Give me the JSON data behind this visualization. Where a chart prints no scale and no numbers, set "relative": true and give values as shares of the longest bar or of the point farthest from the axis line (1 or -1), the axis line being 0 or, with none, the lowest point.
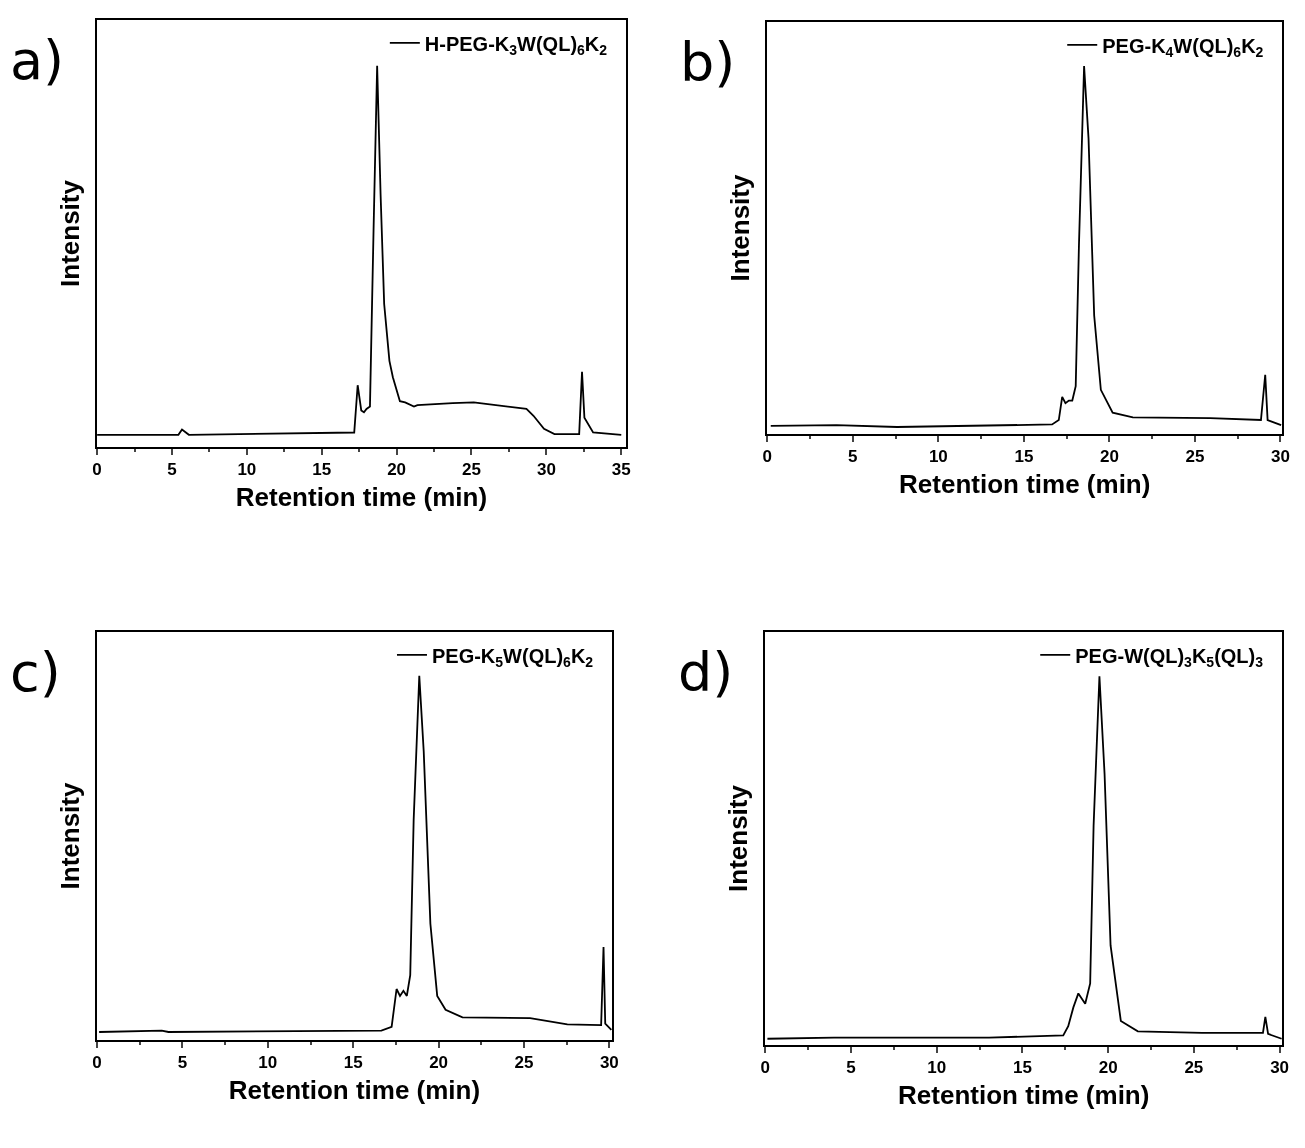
{
  "chart_data": [
    {
      "type": "line",
      "title": "a)",
      "xlabel": "Retention time (min)",
      "ylabel": "Intensity",
      "relative": true,
      "xlim": [
        0,
        35.3
      ],
      "xticks": [
        0,
        5,
        10,
        15,
        20,
        25,
        30,
        35
      ],
      "tick_labels": "x",
      "legend": "top right",
      "marker": "none",
      "line_style": "solid",
      "x": [
        0,
        5.43,
        5.67,
        6.13,
        17.17,
        17.4,
        17.64,
        17.82,
        17.99,
        18.22,
        18.46,
        18.7,
        18.93,
        19.17,
        19.52,
        19.75,
        20.22,
        20.57,
        21.16,
        21.39,
        23.74,
        25.15,
        28.67,
        29.14,
        29.84,
        30.54,
        32.19,
        32.38,
        32.54,
        33.12,
        35
      ],
      "series": [
        {
          "name": "H-PEG-K$_{3}$W(QL)$_{6}$K$_{2}$",
          "color": "#000000",
          "values": [
            0.032,
            0.032,
            0.046,
            0.032,
            0.038,
            0.162,
            0.096,
            0.091,
            0.1,
            0.106,
            0.567,
            1.0,
            0.663,
            0.375,
            0.226,
            0.183,
            0.12,
            0.117,
            0.106,
            0.11,
            0.115,
            0.117,
            0.1,
            0.082,
            0.048,
            0.034,
            0.034,
            0.197,
            0.077,
            0.038,
            0.032
          ]
        }
      ]
    },
    {
      "type": "line",
      "title": "b)",
      "xlabel": "Retention time (min)",
      "ylabel": "Intensity",
      "relative": true,
      "xlim": [
        0,
        30.1
      ],
      "xticks": [
        0,
        5,
        10,
        15,
        20,
        25,
        30
      ],
      "tick_labels": "x",
      "legend": "top right",
      "marker": "none",
      "line_style": "solid",
      "x": [
        0.2,
        4.04,
        7.58,
        16.65,
        17.04,
        17.24,
        17.43,
        17.63,
        17.83,
        18.03,
        18.22,
        18.52,
        18.78,
        19.11,
        19.5,
        20.19,
        21.37,
        25.9,
        28.86,
        29.11,
        29.25,
        30.04
      ],
      "series": [
        {
          "name": "PEG-K$_{4}$W(QL)$_{6}$K$_{2}$",
          "color": "#000000",
          "values": [
            0.022,
            0.024,
            0.019,
            0.026,
            0.038,
            0.101,
            0.084,
            0.091,
            0.091,
            0.13,
            0.514,
            1.0,
            0.803,
            0.322,
            0.12,
            0.058,
            0.045,
            0.043,
            0.038,
            0.161,
            0.038,
            0.024
          ]
        }
      ]
    },
    {
      "type": "line",
      "title": "c)",
      "xlabel": "Retention time (min)",
      "ylabel": "Intensity",
      "relative": true,
      "xlim": [
        0,
        30.15
      ],
      "xticks": [
        0,
        5,
        10,
        15,
        20,
        25,
        30
      ],
      "tick_labels": "x",
      "legend": "top right",
      "marker": "none",
      "line_style": "solid",
      "x": [
        0.12,
        3.79,
        4.18,
        16.65,
        17.25,
        17.54,
        17.74,
        17.94,
        18.14,
        18.34,
        18.54,
        18.87,
        19.13,
        19.52,
        19.92,
        20.41,
        21.4,
        25.36,
        27.54,
        29.52,
        29.66,
        29.76,
        30.12
      ],
      "series": [
        {
          "name": "PEG-K$_{5}$W(QL)$_{6}$K$_{2}$",
          "color": "#000000",
          "values": [
            0.022,
            0.026,
            0.022,
            0.026,
            0.036,
            0.14,
            0.121,
            0.135,
            0.121,
            0.178,
            0.603,
            1.0,
            0.792,
            0.319,
            0.121,
            0.083,
            0.062,
            0.06,
            0.043,
            0.041,
            0.255,
            0.045,
            0.028
          ]
        }
      ]
    },
    {
      "type": "line",
      "title": "d)",
      "xlabel": "Retention time (min)",
      "ylabel": "Intensity",
      "relative": true,
      "xlim": [
        0,
        30.15
      ],
      "xticks": [
        0,
        5,
        10,
        15,
        20,
        25,
        30
      ],
      "tick_labels": "x",
      "legend": "top right",
      "marker": "none",
      "line_style": "solid",
      "x": [
        0.12,
        4.01,
        13.05,
        17.38,
        17.67,
        17.97,
        18.26,
        18.66,
        18.95,
        19.15,
        19.49,
        19.79,
        20.14,
        20.74,
        21.73,
        25.48,
        29.03,
        29.17,
        29.33,
        30.12
      ],
      "series": [
        {
          "name": "PEG-W(QL)$_{3}$K$_{5}$(QL)$_{3}$",
          "color": "#000000",
          "values": [
            0.017,
            0.02,
            0.02,
            0.026,
            0.051,
            0.102,
            0.14,
            0.112,
            0.167,
            0.595,
            1.0,
            0.735,
            0.27,
            0.065,
            0.037,
            0.033,
            0.033,
            0.076,
            0.03,
            0.017
          ]
        }
      ]
    }
  ]
}
